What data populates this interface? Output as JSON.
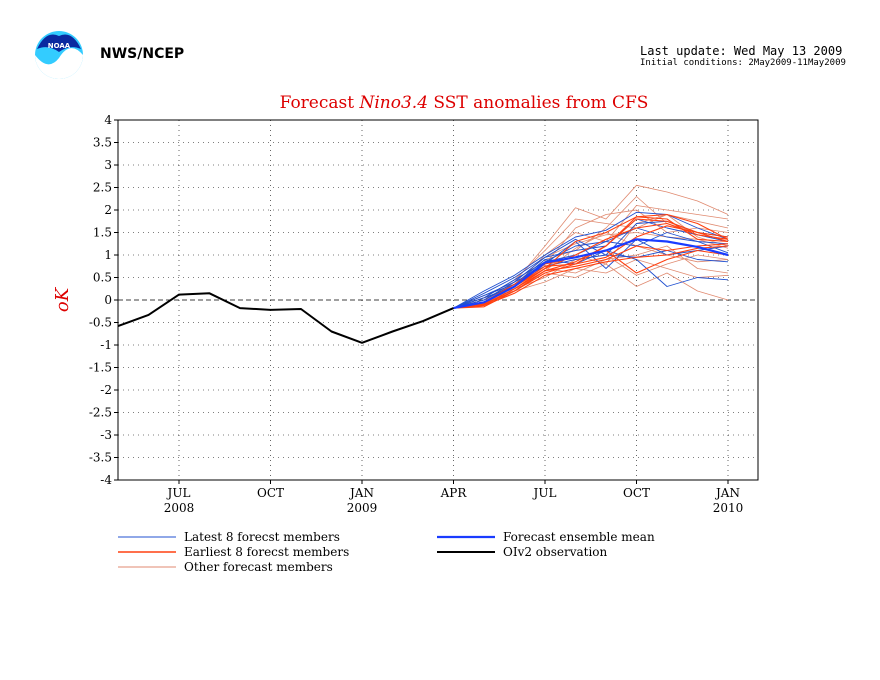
{
  "header": {
    "org": "NWS/NCEP",
    "last_update": "Last update: Wed May 13 2009",
    "initial_conditions": "Initial conditions: 2May2009-11May2009",
    "logo_text": "NOAA"
  },
  "colors": {
    "latest": "#2050d0",
    "earliest": "#ff4010",
    "other": "#e08a70",
    "mean": "#1a3cff",
    "obs": "#000000",
    "title": "#dd0000"
  },
  "chart_data": {
    "type": "line",
    "title_parts": [
      "Forecast ",
      "Nino3.4",
      " SST anomalies from CFS"
    ],
    "ylabel": "oK",
    "ylim": [
      -4,
      4
    ],
    "yticks": [
      "4",
      "3.5",
      "3",
      "2.5",
      "2",
      "1.5",
      "1",
      "0.5",
      "0",
      "-0.5",
      "-1",
      "-1.5",
      "-2",
      "-2.5",
      "-3",
      "-3.5",
      "-4"
    ],
    "xticks": [
      {
        "month": "JUL",
        "year": "2008",
        "index": 2
      },
      {
        "month": "OCT",
        "year": "",
        "index": 5
      },
      {
        "month": "JAN",
        "year": "2009",
        "index": 8
      },
      {
        "month": "APR",
        "year": "",
        "index": 11
      },
      {
        "month": "JUL",
        "year": "",
        "index": 14
      },
      {
        "month": "OCT",
        "year": "",
        "index": 17
      },
      {
        "month": "JAN",
        "year": "2010",
        "index": 20
      }
    ],
    "x_months": [
      "May 2008",
      "Jun 2008",
      "Jul 2008",
      "Aug 2008",
      "Sep 2008",
      "Oct 2008",
      "Nov 2008",
      "Dec 2008",
      "Jan 2009",
      "Feb 2009",
      "Mar 2009",
      "Apr 2009",
      "May 2009",
      "Jun 2009",
      "Jul 2009",
      "Aug 2009",
      "Sep 2009",
      "Oct 2009",
      "Nov 2009",
      "Dec 2009",
      "Jan 2010"
    ],
    "observation": {
      "name": "OIv2 observation",
      "values": [
        -0.58,
        -0.33,
        0.12,
        0.15,
        -0.18,
        -0.22,
        -0.2,
        -0.7,
        -0.95,
        -0.7,
        -0.47,
        -0.18
      ]
    },
    "forecast_start_index": 11,
    "forecast_start_value": -0.18,
    "ensemble_mean": {
      "name": "Forecast ensemble mean",
      "values": [
        -0.18,
        -0.05,
        0.3,
        0.83,
        0.95,
        1.1,
        1.35,
        1.3,
        1.18,
        1.0
      ]
    },
    "latest_members": [
      [
        -0.18,
        0.05,
        0.45,
        0.85,
        1.2,
        1.3,
        1.6,
        1.4,
        1.3,
        1.25
      ],
      [
        -0.18,
        0.1,
        0.4,
        0.95,
        1.35,
        1.0,
        1.7,
        1.75,
        1.5,
        1.4
      ],
      [
        -0.18,
        0.0,
        0.35,
        0.9,
        0.8,
        1.1,
        0.9,
        0.3,
        0.5,
        0.45
      ],
      [
        -0.18,
        0.15,
        0.5,
        0.95,
        1.1,
        1.2,
        1.8,
        1.6,
        1.45,
        1.3
      ],
      [
        -0.18,
        0.05,
        0.3,
        0.8,
        1.3,
        0.7,
        1.35,
        1.0,
        1.1,
        1.2
      ],
      [
        -0.18,
        0.2,
        0.55,
        1.0,
        1.4,
        1.55,
        1.95,
        1.9,
        1.6,
        1.35
      ],
      [
        -0.18,
        0.0,
        0.4,
        0.75,
        0.9,
        1.0,
        0.95,
        1.1,
        0.9,
        0.85
      ],
      [
        -0.18,
        0.1,
        0.35,
        0.85,
        1.0,
        1.3,
        1.2,
        1.5,
        1.3,
        1.05
      ]
    ],
    "earliest_members": [
      [
        -0.18,
        -0.1,
        0.25,
        0.7,
        1.3,
        1.5,
        1.85,
        1.9,
        1.7,
        1.35
      ],
      [
        -0.18,
        -0.15,
        0.2,
        0.65,
        0.75,
        0.9,
        1.2,
        1.1,
        1.2,
        1.25
      ],
      [
        -0.18,
        -0.05,
        0.3,
        0.75,
        0.8,
        1.2,
        1.8,
        1.75,
        1.5,
        1.3
      ],
      [
        -0.18,
        -0.12,
        0.15,
        0.55,
        0.7,
        0.85,
        0.95,
        1.0,
        1.15,
        1.2
      ],
      [
        -0.18,
        -0.08,
        0.3,
        0.7,
        1.0,
        1.35,
        1.6,
        1.7,
        1.45,
        1.35
      ],
      [
        -0.18,
        -0.1,
        0.2,
        0.6,
        0.8,
        0.95,
        1.4,
        1.65,
        1.5,
        1.4
      ],
      [
        -0.18,
        -0.05,
        0.35,
        0.8,
        0.95,
        1.1,
        0.6,
        0.9,
        1.1,
        1.0
      ],
      [
        -0.18,
        -0.12,
        0.25,
        0.65,
        0.85,
        1.2,
        1.85,
        1.8,
        1.35,
        1.3
      ]
    ],
    "other_members": [
      [
        -0.18,
        0.0,
        0.4,
        1.2,
        2.05,
        1.8,
        2.55,
        2.4,
        2.2,
        1.9
      ],
      [
        -0.18,
        -0.05,
        0.3,
        1.0,
        1.5,
        1.3,
        2.1,
        2.0,
        1.9,
        1.8
      ],
      [
        -0.18,
        0.05,
        0.2,
        0.6,
        0.5,
        0.8,
        0.3,
        0.6,
        0.2,
        0.0
      ],
      [
        -0.18,
        0.0,
        0.35,
        0.9,
        1.1,
        1.6,
        2.3,
        1.7,
        1.5,
        1.4
      ],
      [
        -0.18,
        -0.1,
        0.25,
        0.5,
        0.9,
        1.0,
        0.55,
        0.8,
        1.0,
        0.9
      ],
      [
        -0.18,
        0.05,
        0.45,
        1.1,
        1.8,
        1.7,
        1.6,
        1.9,
        1.75,
        1.6
      ],
      [
        -0.18,
        0.0,
        0.3,
        0.7,
        0.6,
        0.9,
        1.0,
        1.2,
        0.7,
        0.6
      ],
      [
        -0.18,
        -0.05,
        0.4,
        0.95,
        1.25,
        1.45,
        1.5,
        1.4,
        1.35,
        1.15
      ],
      [
        -0.18,
        0.1,
        0.35,
        0.8,
        1.6,
        1.9,
        2.0,
        1.5,
        1.6,
        1.5
      ],
      [
        -0.18,
        0.0,
        0.2,
        0.4,
        0.7,
        0.6,
        0.9,
        0.7,
        0.5,
        0.55
      ],
      [
        -0.18,
        -0.05,
        0.3,
        0.75,
        1.0,
        0.8,
        1.7,
        1.9,
        1.4,
        1.2
      ],
      [
        -0.18,
        0.05,
        0.25,
        0.65,
        1.15,
        1.5,
        1.2,
        1.0,
        0.85,
        0.9
      ]
    ],
    "legend": [
      {
        "key": "latest",
        "label": "Latest 8 forecst members"
      },
      {
        "key": "earliest",
        "label": "Earliest 8 forecst members"
      },
      {
        "key": "other",
        "label": "Other forecast members"
      },
      {
        "key": "mean",
        "label": "Forecast ensemble mean"
      },
      {
        "key": "obs",
        "label": "OIv2 observation"
      }
    ],
    "grid": true,
    "legend_position": "bottom"
  }
}
